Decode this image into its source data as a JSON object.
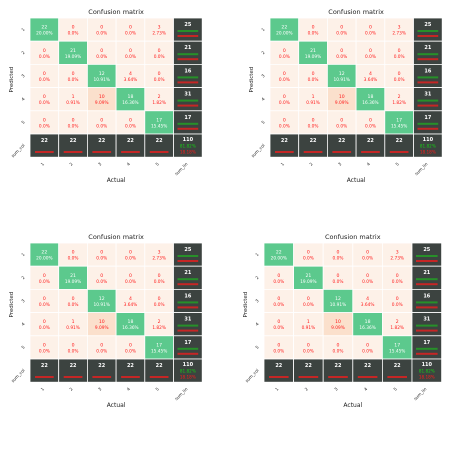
{
  "chart_data": [
    {
      "type": "heatmap",
      "title": "Confusion matrix",
      "xlabel": "Actual",
      "ylabel": "Predicted",
      "x_ticklabels": [
        "1",
        "2",
        "3",
        "4",
        "5",
        "sum_lin"
      ],
      "y_ticklabels": [
        "1",
        "2",
        "3",
        "4",
        "5",
        "sum_col"
      ],
      "matrix": [
        [
          22,
          0,
          0,
          0,
          3
        ],
        [
          0,
          21,
          0,
          0,
          0
        ],
        [
          0,
          0,
          12,
          4,
          0
        ],
        [
          0,
          1,
          10,
          18,
          2
        ],
        [
          0,
          0,
          0,
          0,
          17
        ]
      ],
      "cell_pct": [
        [
          "20.00%",
          "0.0%",
          "0.0%",
          "0.0%",
          "2.73%"
        ],
        [
          "0.0%",
          "19.09%",
          "0.0%",
          "0.0%",
          "0.0%"
        ],
        [
          "0.0%",
          "0.0%",
          "10.91%",
          "3.64%",
          "0.0%"
        ],
        [
          "0.0%",
          "0.91%",
          "9.09%",
          "16.36%",
          "1.82%"
        ],
        [
          "0.0%",
          "0.0%",
          "0.0%",
          "0.0%",
          "15.45%"
        ]
      ],
      "row_sums": [
        25,
        21,
        16,
        31,
        17
      ],
      "col_sums": [
        22,
        22,
        22,
        22,
        22
      ],
      "total": 110,
      "total_pct": [
        "81.82%",
        "18.18%"
      ]
    },
    {
      "type": "heatmap",
      "title": "Confusion matrix",
      "xlabel": "Actual",
      "ylabel": "Predicted",
      "x_ticklabels": [
        "1",
        "2",
        "3",
        "4",
        "5",
        "sum_lin"
      ],
      "y_ticklabels": [
        "1",
        "2",
        "3",
        "4",
        "5",
        "sum_col"
      ],
      "matrix": [
        [
          22,
          0,
          0,
          0,
          3
        ],
        [
          0,
          21,
          0,
          0,
          0
        ],
        [
          0,
          0,
          12,
          4,
          0
        ],
        [
          0,
          1,
          10,
          18,
          2
        ],
        [
          0,
          0,
          0,
          0,
          17
        ]
      ],
      "cell_pct": [
        [
          "20.00%",
          "0.0%",
          "0.0%",
          "0.0%",
          "2.73%"
        ],
        [
          "0.0%",
          "19.09%",
          "0.0%",
          "0.0%",
          "0.0%"
        ],
        [
          "0.0%",
          "0.0%",
          "10.91%",
          "3.64%",
          "0.0%"
        ],
        [
          "0.0%",
          "0.91%",
          "9.09%",
          "16.36%",
          "1.82%"
        ],
        [
          "0.0%",
          "0.0%",
          "0.0%",
          "0.0%",
          "15.45%"
        ]
      ],
      "row_sums": [
        25,
        21,
        16,
        31,
        17
      ],
      "col_sums": [
        22,
        22,
        22,
        22,
        22
      ],
      "total": 110,
      "total_pct": [
        "81.82%",
        "18.18%"
      ]
    },
    {
      "type": "heatmap",
      "title": "Confusion matrix",
      "xlabel": "Actual",
      "ylabel": "Predicted",
      "x_ticklabels": [
        "1",
        "2",
        "3",
        "4",
        "5",
        "sum_lin"
      ],
      "y_ticklabels": [
        "1",
        "2",
        "3",
        "4",
        "5",
        "sum_col"
      ],
      "matrix": [
        [
          22,
          0,
          0,
          0,
          3
        ],
        [
          0,
          21,
          0,
          0,
          0
        ],
        [
          0,
          0,
          12,
          4,
          0
        ],
        [
          0,
          1,
          10,
          18,
          2
        ],
        [
          0,
          0,
          0,
          0,
          17
        ]
      ],
      "cell_pct": [
        [
          "20.00%",
          "0.0%",
          "0.0%",
          "0.0%",
          "2.73%"
        ],
        [
          "0.0%",
          "19.09%",
          "0.0%",
          "0.0%",
          "0.0%"
        ],
        [
          "0.0%",
          "0.0%",
          "10.91%",
          "3.64%",
          "0.0%"
        ],
        [
          "0.0%",
          "0.91%",
          "9.09%",
          "16.36%",
          "1.82%"
        ],
        [
          "0.0%",
          "0.0%",
          "0.0%",
          "0.0%",
          "15.45%"
        ]
      ],
      "row_sums": [
        25,
        21,
        16,
        31,
        17
      ],
      "col_sums": [
        22,
        22,
        22,
        22,
        22
      ],
      "total": 110,
      "total_pct": [
        "81.82%",
        "18.18%"
      ]
    },
    {
      "type": "heatmap",
      "title": "Confusion matrix",
      "xlabel": "Actual",
      "ylabel": "Predicted",
      "x_ticklabels": [
        "1",
        "2",
        "3",
        "4",
        "5",
        "sum_lin"
      ],
      "y_ticklabels": [
        "1",
        "2",
        "3",
        "4",
        "5",
        "sum_col"
      ],
      "matrix": [
        [
          22,
          0,
          0,
          0,
          3
        ],
        [
          0,
          21,
          0,
          0,
          0
        ],
        [
          0,
          0,
          12,
          4,
          0
        ],
        [
          0,
          1,
          10,
          18,
          2
        ],
        [
          0,
          0,
          0,
          0,
          17
        ]
      ],
      "cell_pct": [
        [
          "20.00%",
          "0.0%",
          "0.0%",
          "0.0%",
          "2.73%"
        ],
        [
          "0.0%",
          "19.09%",
          "0.0%",
          "0.0%",
          "0.0%"
        ],
        [
          "0.0%",
          "0.0%",
          "10.91%",
          "3.64%",
          "0.0%"
        ],
        [
          "0.0%",
          "0.91%",
          "9.09%",
          "16.36%",
          "1.82%"
        ],
        [
          "0.0%",
          "0.0%",
          "0.0%",
          "0.0%",
          "15.45%"
        ]
      ],
      "row_sums": [
        25,
        21,
        16,
        31,
        17
      ],
      "col_sums": [
        22,
        22,
        22,
        22,
        22
      ],
      "total": 110,
      "total_pct": [
        "81.82%",
        "18.18%"
      ]
    }
  ],
  "colors": {
    "diagonal": "#5cc98d",
    "off_low": "#fdf1e8",
    "off_mid": "#fbe0cc",
    "sum_cell": "#3c4340",
    "pct_red": "#ff1a1a",
    "pct_green": "#15d015",
    "text_dark": "#222222",
    "text_white": "#ffffff"
  }
}
